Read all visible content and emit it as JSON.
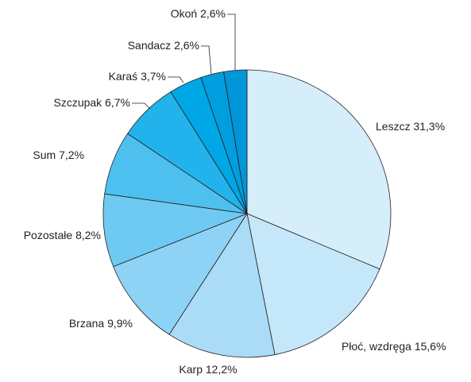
{
  "chart_data": {
    "type": "pie",
    "categories": [
      "Leszcz",
      "Płoć, wzdręga",
      "Karp",
      "Brzana",
      "Pozostałe",
      "Sum",
      "Szczupak",
      "Karaś",
      "Sandacz",
      "Okoń"
    ],
    "values": [
      31.3,
      15.6,
      12.2,
      9.9,
      8.2,
      7.2,
      6.7,
      3.7,
      2.6,
      2.6
    ],
    "value_labels": [
      "31,3%",
      "15,6%",
      "12,2%",
      "9,9%",
      "8,2%",
      "7,2%",
      "6,7%",
      "3,7%",
      "2,6%",
      "2,6%"
    ],
    "colors": [
      "#d6edfa",
      "#c5e7fa",
      "#aadcf7",
      "#8ed3f5",
      "#6fcaf3",
      "#4dc0f0",
      "#22b3ec",
      "#00a7e6",
      "#009ede",
      "#0096d7"
    ]
  }
}
